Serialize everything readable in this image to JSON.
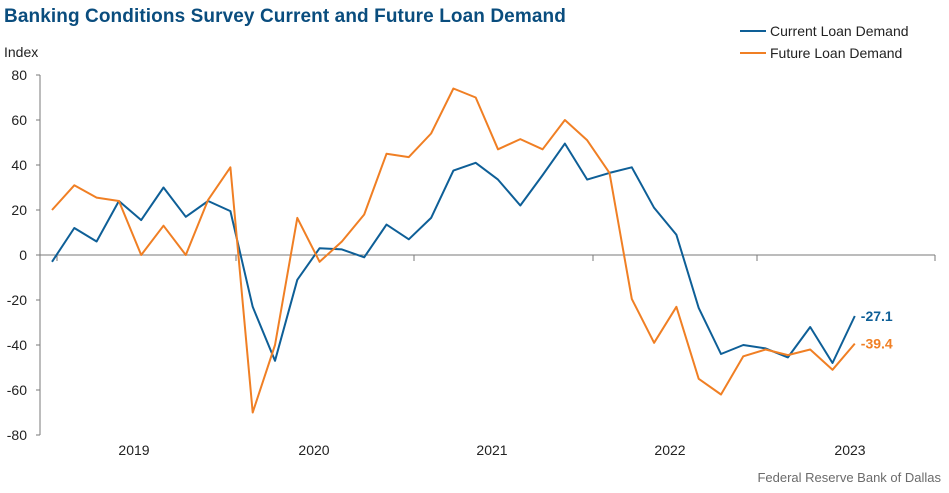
{
  "chart_data": {
    "type": "line",
    "title": "Banking Conditions Survey Current and Future Loan Demand",
    "xlabel": "",
    "ylabel": "Index",
    "ylim": [
      -80,
      80
    ],
    "yticks": [
      80,
      60,
      40,
      20,
      0,
      -20,
      -40,
      -60,
      -80
    ],
    "year_labels": [
      "2019",
      "2020",
      "2021",
      "2022",
      "2023"
    ],
    "grid": false,
    "legend_position": "top-right",
    "series": [
      {
        "name": "Current Loan Demand",
        "color": "#0e5f97",
        "end_label": "-27.1",
        "values": [
          -3,
          12,
          6,
          24,
          15.5,
          30,
          17,
          24,
          19.5,
          -23,
          -47,
          -11,
          3,
          2.5,
          -1,
          13.5,
          7,
          16.5,
          37.5,
          41,
          33.5,
          22,
          35.5,
          49.5,
          33.5,
          36.5,
          39,
          21,
          9,
          -23.5,
          -44,
          -40,
          -41.5,
          -45.5,
          -32,
          -48,
          -27.1
        ]
      },
      {
        "name": "Future Loan Demand",
        "color": "#f07f24",
        "end_label": "-39.4",
        "values": [
          20,
          31,
          25.5,
          24,
          0,
          13,
          0,
          24.5,
          39,
          -70,
          -40,
          16.5,
          -3,
          6,
          18,
          45,
          43.5,
          54,
          74,
          70,
          47,
          51.5,
          47,
          60,
          51,
          36.5,
          -19.5,
          -39,
          -23,
          -55,
          -62,
          -45,
          -42,
          -44.5,
          -42,
          -51,
          -39.4
        ]
      }
    ]
  },
  "source": "Federal Reserve Bank of Dallas",
  "colors": {
    "title": "#0a4d7e",
    "current": "#0e5f97",
    "future": "#f07f24"
  }
}
